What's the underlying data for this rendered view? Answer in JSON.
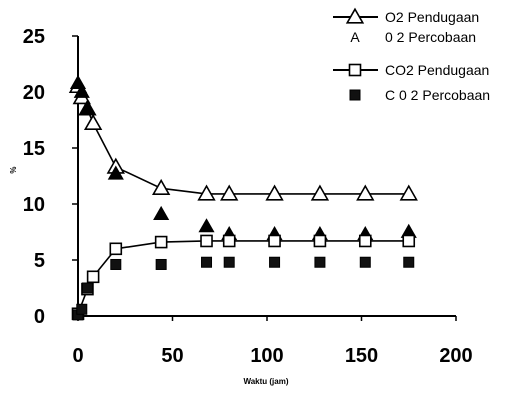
{
  "chart_data": {
    "type": "scatter",
    "title": "",
    "xlabel": "Waktu (jam)",
    "ylabel": "%",
    "xlim": [
      0,
      200
    ],
    "ylim": [
      0,
      25
    ],
    "xticks": [
      "0",
      "50",
      "100",
      "150",
      "200"
    ],
    "yticks": [
      "0",
      "5",
      "10",
      "15",
      "20",
      "25"
    ],
    "grid": false,
    "legend_position": "top-right",
    "series": [
      {
        "name": "O2 Pendugaan",
        "marker": "open-triangle",
        "line": true,
        "x": [
          0,
          2,
          5,
          8,
          20,
          44,
          68,
          80,
          104,
          128,
          152,
          175
        ],
        "y": [
          20.5,
          19.5,
          18.5,
          17.2,
          13.3,
          11.4,
          10.9,
          10.9,
          10.9,
          10.9,
          10.9,
          10.9
        ]
      },
      {
        "name": "0 2 Percobaan",
        "marker": "filled-triangle",
        "line": false,
        "x": [
          0,
          2,
          5,
          20,
          44,
          68,
          80,
          104,
          128,
          152,
          175
        ],
        "y": [
          20.8,
          20.0,
          18.5,
          12.7,
          9.1,
          8.0,
          7.3,
          7.3,
          7.3,
          7.3,
          7.5
        ]
      },
      {
        "name": "CO2 Pendugaan",
        "marker": "open-square",
        "line": true,
        "x": [
          0,
          5,
          8,
          20,
          44,
          68,
          80,
          104,
          128,
          152,
          175
        ],
        "y": [
          0.2,
          2.4,
          3.5,
          6.0,
          6.6,
          6.7,
          6.7,
          6.7,
          6.7,
          6.7,
          6.7
        ]
      },
      {
        "name": "C 0 2 Percobaan",
        "marker": "filled-square",
        "line": false,
        "x": [
          0,
          2,
          5,
          20,
          44,
          68,
          80,
          104,
          128,
          152,
          175
        ],
        "y": [
          0.1,
          0.6,
          2.5,
          4.6,
          4.6,
          4.8,
          4.8,
          4.8,
          4.8,
          4.8,
          4.8
        ]
      }
    ],
    "legend_markers": [
      "line-open-triangle",
      "letter-A",
      "line-open-square",
      "filled-square"
    ],
    "legend_marker_letter": "A"
  }
}
